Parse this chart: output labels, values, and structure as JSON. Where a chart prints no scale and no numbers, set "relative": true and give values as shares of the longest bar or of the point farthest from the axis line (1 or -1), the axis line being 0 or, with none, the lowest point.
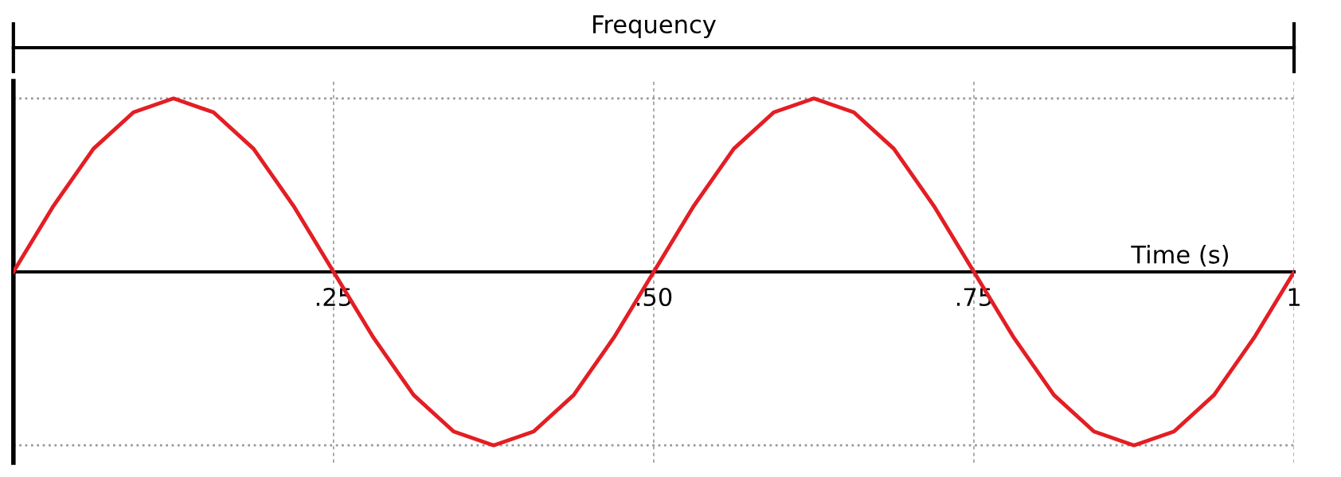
{
  "chart_data": {
    "type": "line",
    "relative": true,
    "xlabel": "Time (s)",
    "annotations": [
      "Frequency"
    ],
    "x": [
      0,
      0.03125,
      0.0625,
      0.09375,
      0.125,
      0.15625,
      0.1875,
      0.21875,
      0.25,
      0.28125,
      0.3125,
      0.34375,
      0.375,
      0.40625,
      0.4375,
      0.46875,
      0.5,
      0.53125,
      0.5625,
      0.59375,
      0.625,
      0.65625,
      0.6875,
      0.71875,
      0.75,
      0.78125,
      0.8125,
      0.84375,
      0.875,
      0.90625,
      0.9375,
      0.96875,
      1
    ],
    "series": [
      {
        "color": "#e31e24",
        "values": [
          0,
          0.38,
          0.71,
          0.92,
          1,
          0.92,
          0.71,
          0.38,
          0,
          -0.38,
          -0.71,
          -0.92,
          -1,
          -0.92,
          -0.71,
          -0.38,
          0,
          0.38,
          0.71,
          0.92,
          1,
          0.92,
          0.71,
          0.38,
          0,
          -0.38,
          -0.71,
          -0.92,
          -1,
          -0.92,
          -0.71,
          -0.38,
          0
        ]
      }
    ],
    "xlim": [
      0,
      1
    ],
    "xticks": [
      {
        "value": 0.25,
        "label": ".25"
      },
      {
        "value": 0.5,
        "label": ".50"
      },
      {
        "value": 0.75,
        "label": ".75"
      },
      1
    ],
    "grid": "x",
    "ref_lines": [
      {
        "axis": "y",
        "value": 1,
        "label": null,
        "color": "#999999",
        "line_style": "dotted"
      },
      {
        "axis": "y",
        "value": -1,
        "label": null,
        "color": "#999999",
        "line_style": "dotted"
      }
    ],
    "tick_labels": "x",
    "legend": false,
    "marker": "none",
    "line_style": "solid"
  }
}
